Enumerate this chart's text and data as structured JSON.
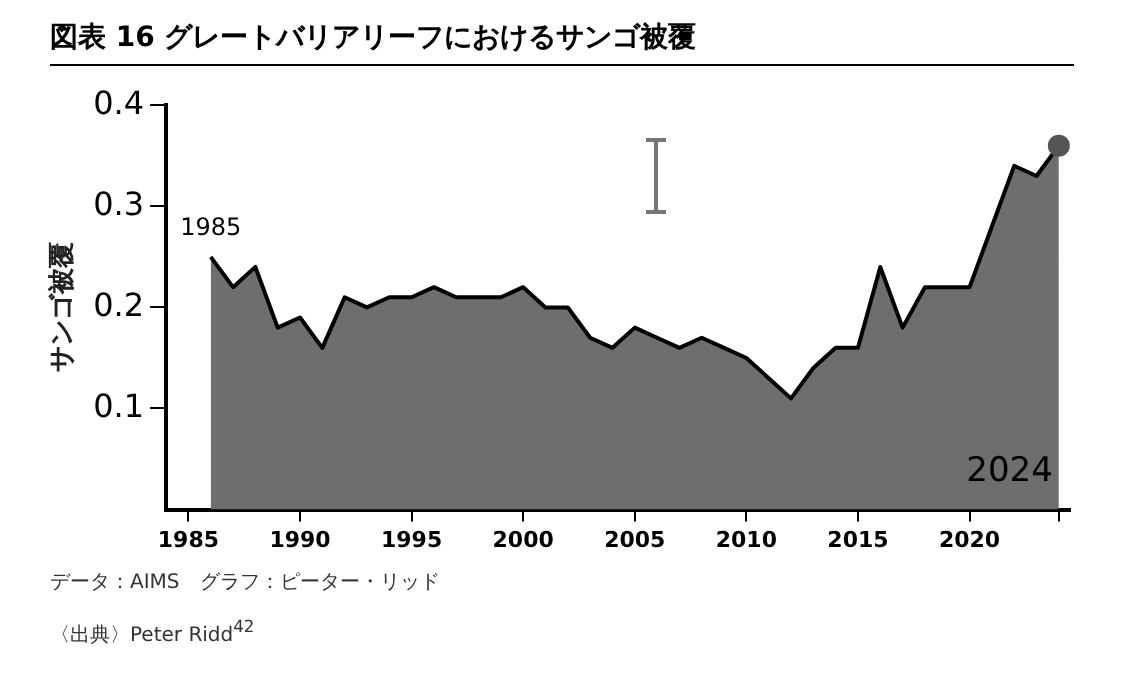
{
  "chart_data": {
    "type": "area",
    "title": "図表 16 グレートバリアリーフにおけるサンゴ被覆",
    "ylabel": "サンゴ被覆",
    "annotations": [
      {
        "text": "1985",
        "x": 1986,
        "y": 0.25
      },
      {
        "text": "2024",
        "x": 2024,
        "y": 0.02
      },
      "データ：AIMS　グラフ：ピーター・リッド",
      "〈出典〉Peter Ridd$^{42}$"
    ],
    "x": [
      1986,
      1987,
      1988,
      1989,
      1990,
      1991,
      1992,
      1993,
      1994,
      1995,
      1996,
      1997,
      1998,
      1999,
      2000,
      2001,
      2002,
      2003,
      2004,
      2005,
      2006,
      2007,
      2008,
      2009,
      2010,
      2011,
      2012,
      2013,
      2014,
      2015,
      2016,
      2017,
      2018,
      2019,
      2020,
      2021,
      2022,
      2023,
      2024
    ],
    "series": [
      {
        "color": "#6e6e6e",
        "values": [
          0.25,
          0.22,
          0.24,
          0.18,
          0.19,
          0.16,
          0.21,
          0.2,
          0.21,
          0.21,
          0.22,
          0.21,
          0.21,
          0.21,
          0.22,
          0.2,
          0.2,
          0.17,
          0.16,
          0.18,
          0.17,
          0.16,
          0.17,
          0.16,
          0.15,
          0.13,
          0.11,
          0.14,
          0.16,
          0.16,
          0.24,
          0.18,
          0.22,
          0.22,
          0.22,
          0.28,
          0.34,
          0.33,
          0.36
        ]
      },
      {
        "type": "scatter",
        "color": "#555555",
        "x": [
          2024
        ],
        "values": [
          0.36
        ]
      }
    ],
    "xlim": [
      1984,
      2024.5
    ],
    "xticks": [
      1985,
      1990,
      1995,
      2000,
      2005,
      2010,
      2015,
      2020,
      {
        "value": 2024,
        "label": null
      }
    ],
    "ylim": [
      0,
      0.4
    ],
    "yticks": [
      0.1,
      0.2,
      0.3,
      0.4
    ],
    "grid": false,
    "legend": false
  }
}
